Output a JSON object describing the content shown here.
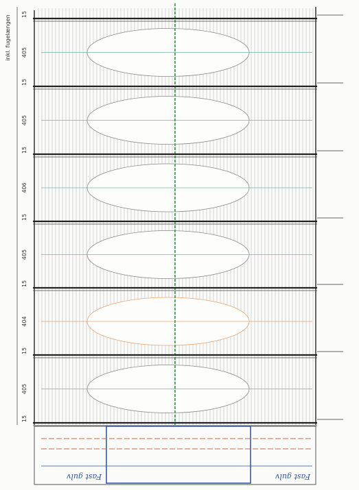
{
  "side_label": "inkl. fugelængen",
  "dimensions": [
    "15",
    "405",
    "15",
    "405",
    "15",
    "406",
    "15",
    "405",
    "15",
    "404",
    "15",
    "405",
    "15"
  ],
  "floor_notes": [
    "Fast gulv",
    "Fast gulv"
  ]
}
